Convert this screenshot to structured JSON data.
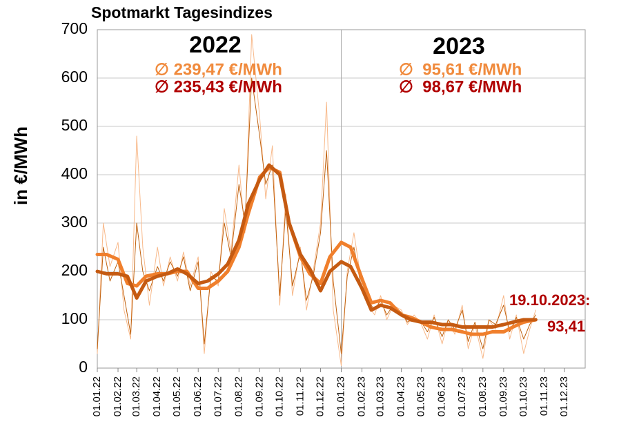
{
  "chart_data": {
    "type": "line",
    "title": "Spotmarkt Tagesindizes",
    "ylabel": "in €/MWh",
    "annotations": [
      "2022",
      "2023",
      "∅ 239,47 €/MWh",
      "∅ 235,43 €/MWh",
      "∅  95,61 €/MWh",
      "∅  98,67 €/MWh",
      "19.10.2023:",
      "93,41"
    ],
    "xlim": [
      "01.01.22",
      "01.01.24"
    ],
    "xticks": [
      "01.01.22",
      "01.02.22",
      "01.03.22",
      "01.04.22",
      "01.05.22",
      "01.06.22",
      "01.07.22",
      "01.08.22",
      "01.09.22",
      "01.10.22",
      "01.11.22",
      "01.12.22",
      "01.01.23",
      "01.02.23",
      "01.03.23",
      "01.04.23",
      "01.05.23",
      "01.06.23",
      "01.07.23",
      "01.08.23",
      "01.09.23",
      "01.10.23",
      "01.11.23",
      "01.12.23"
    ],
    "ylim": [
      0,
      700
    ],
    "yticks": [
      0,
      100,
      200,
      300,
      400,
      500,
      600,
      700
    ],
    "grid": true,
    "series": [
      {
        "color": "#f8b98a",
        "width": 1,
        "x": [
          "01.01.22",
          "10.01.22",
          "20.01.22",
          "01.02.22",
          "10.02.22",
          "20.02.22",
          "01.03.22",
          "10.03.22",
          "20.03.22",
          "01.04.22",
          "10.04.22",
          "20.04.22",
          "01.05.22",
          "10.05.22",
          "20.05.22",
          "01.06.22",
          "10.06.22",
          "20.06.22",
          "01.07.22",
          "10.07.22",
          "20.07.22",
          "01.08.22",
          "10.08.22",
          "20.08.22",
          "01.09.22",
          "10.09.22",
          "20.09.22",
          "01.10.22",
          "10.10.22",
          "20.10.22",
          "01.11.22",
          "10.11.22",
          "20.11.22",
          "01.12.22",
          "10.12.22",
          "20.12.22",
          "01.01.23",
          "10.01.23",
          "20.01.23",
          "01.02.23",
          "10.02.23",
          "20.02.23",
          "01.03.23",
          "10.03.23",
          "20.03.23",
          "01.04.23",
          "10.04.23",
          "20.04.23",
          "01.05.23",
          "10.05.23",
          "20.05.23",
          "01.06.23",
          "10.06.23",
          "20.06.23",
          "01.07.23",
          "10.07.23",
          "20.07.23",
          "01.08.23",
          "10.08.23",
          "20.08.23",
          "01.09.23",
          "10.09.23",
          "20.09.23",
          "01.10.23",
          "10.10.23",
          "19.10.23"
        ],
        "values": [
          30,
          300,
          210,
          260,
          120,
          60,
          480,
          250,
          130,
          250,
          170,
          230,
          180,
          240,
          170,
          230,
          30,
          200,
          170,
          330,
          240,
          420,
          280,
          690,
          520,
          350,
          460,
          130,
          360,
          150,
          250,
          120,
          200,
          300,
          550,
          120,
          5,
          200,
          280,
          170,
          130,
          110,
          150,
          100,
          130,
          120,
          90,
          110,
          90,
          60,
          110,
          50,
          100,
          70,
          130,
          40,
          90,
          20,
          100,
          80,
          150,
          60,
          110,
          30,
          80,
          120
        ]
      },
      {
        "color": "#c0620f",
        "width": 1,
        "x": [
          "01.01.22",
          "10.01.22",
          "20.01.22",
          "01.02.22",
          "10.02.22",
          "20.02.22",
          "01.03.22",
          "10.03.22",
          "20.03.22",
          "01.04.22",
          "10.04.22",
          "20.04.22",
          "01.05.22",
          "10.05.22",
          "20.05.22",
          "01.06.22",
          "10.06.22",
          "20.06.22",
          "01.07.22",
          "10.07.22",
          "20.07.22",
          "01.08.22",
          "10.08.22",
          "20.08.22",
          "01.09.22",
          "10.09.22",
          "20.09.22",
          "01.10.22",
          "10.10.22",
          "20.10.22",
          "01.11.22",
          "10.11.22",
          "20.11.22",
          "01.12.22",
          "10.12.22",
          "20.12.22",
          "01.01.23",
          "10.01.23",
          "20.01.23",
          "01.02.23",
          "10.02.23",
          "20.02.23",
          "01.03.23",
          "10.03.23",
          "20.03.23",
          "01.04.23",
          "10.04.23",
          "20.04.23",
          "01.05.23",
          "10.05.23",
          "20.05.23",
          "01.06.23",
          "10.06.23",
          "20.06.23",
          "01.07.23",
          "10.07.23",
          "20.07.23",
          "01.08.23",
          "10.08.23",
          "20.08.23",
          "01.09.23",
          "10.09.23",
          "20.09.23",
          "01.10.23",
          "10.10.23",
          "19.10.23"
        ],
        "values": [
          40,
          250,
          180,
          220,
          150,
          70,
          300,
          200,
          160,
          210,
          180,
          220,
          190,
          230,
          160,
          220,
          50,
          190,
          180,
          300,
          230,
          380,
          300,
          600,
          480,
          380,
          420,
          150,
          330,
          170,
          240,
          140,
          190,
          280,
          450,
          180,
          30,
          190,
          250,
          160,
          140,
          120,
          140,
          110,
          130,
          115,
          95,
          105,
          95,
          75,
          105,
          65,
          100,
          80,
          120,
          55,
          95,
          40,
          100,
          90,
          130,
          75,
          105,
          60,
          90,
          110
        ]
      },
      {
        "color": "#f07f2c",
        "width": 5,
        "x": [
          "01.01.22",
          "15.01.22",
          "01.02.22",
          "15.02.22",
          "01.03.22",
          "15.03.22",
          "01.04.22",
          "15.04.22",
          "01.05.22",
          "15.05.22",
          "01.06.22",
          "15.06.22",
          "01.07.22",
          "15.07.22",
          "01.08.22",
          "15.08.22",
          "01.09.22",
          "15.09.22",
          "01.10.22",
          "15.10.22",
          "01.11.22",
          "15.11.22",
          "01.12.22",
          "15.12.22",
          "01.01.23",
          "15.01.23",
          "01.02.23",
          "15.02.23",
          "01.03.23",
          "15.03.23",
          "01.04.23",
          "15.04.23",
          "01.05.23",
          "15.05.23",
          "01.06.23",
          "15.06.23",
          "01.07.23",
          "15.07.23",
          "01.08.23",
          "15.08.23",
          "01.09.23",
          "15.09.23",
          "01.10.23",
          "19.10.23"
        ],
        "values": [
          235,
          235,
          225,
          175,
          170,
          190,
          195,
          195,
          200,
          200,
          165,
          165,
          180,
          200,
          250,
          320,
          395,
          415,
          405,
          300,
          230,
          195,
          175,
          230,
          260,
          250,
          185,
          135,
          140,
          135,
          110,
          105,
          95,
          85,
          80,
          80,
          75,
          70,
          70,
          75,
          75,
          85,
          95,
          100
        ]
      },
      {
        "color": "#c55a11",
        "width": 5,
        "x": [
          "01.01.22",
          "15.01.22",
          "01.02.22",
          "15.02.22",
          "01.03.22",
          "15.03.22",
          "01.04.22",
          "15.04.22",
          "01.05.22",
          "15.05.22",
          "01.06.22",
          "15.06.22",
          "01.07.22",
          "15.07.22",
          "01.08.22",
          "15.08.22",
          "01.09.22",
          "15.09.22",
          "01.10.22",
          "15.10.22",
          "01.11.22",
          "15.11.22",
          "01.12.22",
          "15.12.22",
          "01.01.23",
          "15.01.23",
          "01.02.23",
          "15.02.23",
          "01.03.23",
          "15.03.23",
          "01.04.23",
          "15.04.23",
          "01.05.23",
          "15.05.23",
          "01.06.23",
          "15.06.23",
          "01.07.23",
          "15.07.23",
          "01.08.23",
          "15.08.23",
          "01.09.23",
          "15.09.23",
          "01.10.23",
          "19.10.23"
        ],
        "values": [
          200,
          195,
          195,
          190,
          145,
          180,
          190,
          195,
          205,
          195,
          175,
          180,
          195,
          215,
          265,
          340,
          390,
          420,
          400,
          300,
          235,
          205,
          160,
          200,
          220,
          210,
          165,
          120,
          130,
          125,
          110,
          100,
          95,
          95,
          90,
          90,
          85,
          85,
          85,
          85,
          90,
          95,
          100,
          100
        ]
      }
    ]
  }
}
